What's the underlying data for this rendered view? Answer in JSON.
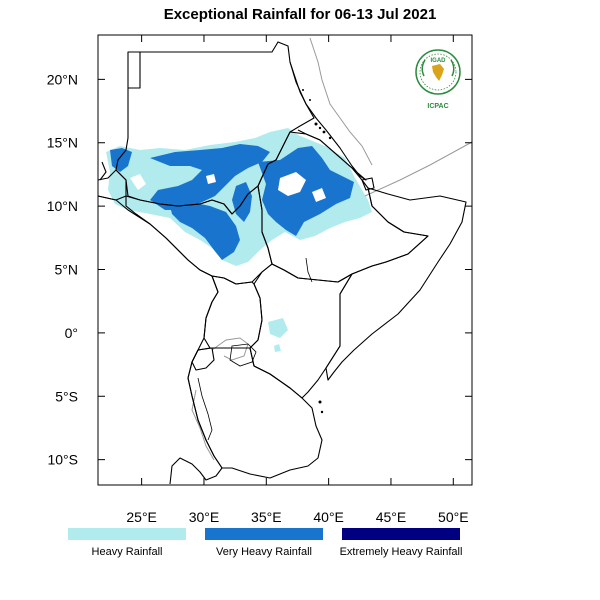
{
  "title": "Exceptional Rainfall for 06-13 Jul 2021",
  "map": {
    "lon_range": [
      21.5,
      51.5
    ],
    "lat_range": [
      -12,
      23.5
    ],
    "y_ticks": [
      {
        "lat": 20,
        "label": "20°N"
      },
      {
        "lat": 15,
        "label": "15°N"
      },
      {
        "lat": 10,
        "label": "10°N"
      },
      {
        "lat": 5,
        "label": "5°N"
      },
      {
        "lat": 0,
        "label": "0°"
      },
      {
        "lat": -5,
        "label": "5°S"
      },
      {
        "lat": -10,
        "label": "10°S"
      }
    ],
    "x_ticks": [
      {
        "lon": 25,
        "label": "25°E"
      },
      {
        "lon": 30,
        "label": "30°E"
      },
      {
        "lon": 35,
        "label": "35°E"
      },
      {
        "lon": 40,
        "label": "40°E"
      },
      {
        "lon": 45,
        "label": "45°E"
      },
      {
        "lon": 50,
        "label": "50°E"
      }
    ]
  },
  "legend": [
    {
      "label": "Heavy Rainfall",
      "color": "#b2ebee"
    },
    {
      "label": "Very Heavy Rainfall",
      "color": "#1874cd"
    },
    {
      "label": "Extremely Heavy Rainfall",
      "color": "#000080"
    }
  ],
  "logo": {
    "top_text": "IGAD",
    "bottom_text": "ICPAC",
    "colors": {
      "green": "#2e8b3e",
      "gold": "#d9a31a"
    }
  }
}
